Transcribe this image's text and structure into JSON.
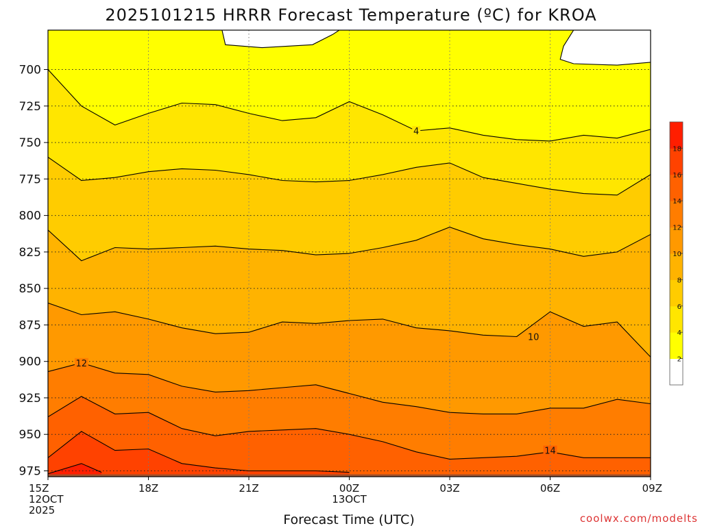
{
  "chart_data": {
    "type": "contour",
    "title": "2025101215 HRRR Forecast Temperature (ºC) for KROA",
    "xlabel": "Forecast Time (UTC)",
    "ylabel": "",
    "credit": "coolwx.com/modelts",
    "x_hours": [
      0,
      18
    ],
    "x_ticks": [
      {
        "hour": 0,
        "line1": "15Z",
        "line2": "12OCT",
        "line3": "2025"
      },
      {
        "hour": 3,
        "line1": "18Z"
      },
      {
        "hour": 6,
        "line1": "21Z"
      },
      {
        "hour": 9,
        "line1": "00Z",
        "line2": "13OCT"
      },
      {
        "hour": 12,
        "line1": "03Z"
      },
      {
        "hour": 15,
        "line1": "06Z"
      },
      {
        "hour": 18,
        "line1": "09Z"
      }
    ],
    "y_ticks": [
      700,
      725,
      750,
      775,
      800,
      825,
      850,
      875,
      900,
      925,
      950,
      975
    ],
    "ylim_hPa": [
      673,
      979
    ],
    "ground_pressure_hPa": 976,
    "colorbar": {
      "levels": [
        2,
        4,
        6,
        8,
        10,
        12,
        14,
        16,
        18
      ],
      "colors": [
        "#ffffff",
        "#ffff00",
        "#ffe600",
        "#ffcc00",
        "#ffb300",
        "#ff9900",
        "#ff7d00",
        "#ff6100",
        "#ff4200",
        "#ff1e00"
      ]
    },
    "contours": [
      {
        "level": 2,
        "label": "",
        "points": [
          [
            5.2,
            673
          ],
          [
            5.3,
            683
          ],
          [
            6.4,
            685
          ],
          [
            7.9,
            683
          ],
          [
            8.5,
            676
          ],
          [
            8.7,
            673
          ]
        ]
      },
      {
        "level": 2,
        "label": "",
        "points": [
          [
            15.7,
            673
          ],
          [
            15.4,
            684
          ],
          [
            15.3,
            693
          ],
          [
            15.7,
            696
          ],
          [
            17.0,
            697
          ],
          [
            18.0,
            695
          ]
        ]
      },
      {
        "level": 4,
        "label": "4",
        "label_at": [
          11,
          742
        ],
        "points": [
          [
            0,
            700
          ],
          [
            1,
            725
          ],
          [
            2,
            738
          ],
          [
            3,
            730
          ],
          [
            4,
            723
          ],
          [
            5,
            724
          ],
          [
            6,
            730
          ],
          [
            7,
            735
          ],
          [
            8,
            733
          ],
          [
            9,
            722
          ],
          [
            10,
            731
          ],
          [
            11,
            742
          ],
          [
            12,
            740
          ],
          [
            13,
            745
          ],
          [
            14,
            748
          ],
          [
            15,
            749
          ],
          [
            16,
            745
          ],
          [
            17,
            747
          ],
          [
            18,
            741
          ]
        ]
      },
      {
        "level": 6,
        "label": "",
        "points": [
          [
            0,
            760
          ],
          [
            1,
            776
          ],
          [
            2,
            774
          ],
          [
            3,
            770
          ],
          [
            4,
            768
          ],
          [
            5,
            769
          ],
          [
            6,
            772
          ],
          [
            7,
            776
          ],
          [
            8,
            777
          ],
          [
            9,
            776
          ],
          [
            10,
            772
          ],
          [
            11,
            767
          ],
          [
            12,
            764
          ],
          [
            13,
            774
          ],
          [
            14,
            778
          ],
          [
            15,
            782
          ],
          [
            16,
            785
          ],
          [
            17,
            786
          ],
          [
            18,
            772
          ]
        ]
      },
      {
        "level": 8,
        "label": "",
        "points": [
          [
            0,
            810
          ],
          [
            1,
            831
          ],
          [
            2,
            822
          ],
          [
            3,
            823
          ],
          [
            4,
            822
          ],
          [
            5,
            821
          ],
          [
            6,
            823
          ],
          [
            7,
            824
          ],
          [
            8,
            827
          ],
          [
            9,
            826
          ],
          [
            10,
            822
          ],
          [
            11,
            817
          ],
          [
            12,
            808
          ],
          [
            13,
            816
          ],
          [
            14,
            820
          ],
          [
            15,
            823
          ],
          [
            16,
            828
          ],
          [
            17,
            825
          ],
          [
            18,
            813
          ]
        ]
      },
      {
        "level": 10,
        "label": "10",
        "label_at": [
          14.5,
          883
        ],
        "points": [
          [
            0,
            860
          ],
          [
            1,
            868
          ],
          [
            2,
            866
          ],
          [
            3,
            871
          ],
          [
            4,
            877
          ],
          [
            5,
            881
          ],
          [
            6,
            880
          ],
          [
            7,
            873
          ],
          [
            8,
            874
          ],
          [
            9,
            872
          ],
          [
            10,
            871
          ],
          [
            11,
            877
          ],
          [
            12,
            879
          ],
          [
            13,
            882
          ],
          [
            14,
            883
          ],
          [
            15,
            866
          ],
          [
            16,
            876
          ],
          [
            17,
            873
          ],
          [
            18,
            897
          ]
        ]
      },
      {
        "level": 12,
        "label": "12",
        "label_at": [
          1,
          901
        ],
        "points": [
          [
            0,
            907
          ],
          [
            1,
            901
          ],
          [
            2,
            908
          ],
          [
            3,
            909
          ],
          [
            4,
            917
          ],
          [
            5,
            921
          ],
          [
            6,
            920
          ],
          [
            7,
            918
          ],
          [
            8,
            916
          ],
          [
            9,
            922
          ],
          [
            10,
            928
          ],
          [
            11,
            931
          ],
          [
            12,
            935
          ],
          [
            13,
            936
          ],
          [
            14,
            936
          ],
          [
            15,
            932
          ],
          [
            16,
            932
          ],
          [
            17,
            926
          ],
          [
            18,
            929
          ]
        ]
      },
      {
        "level": 14,
        "label": "14",
        "label_at": [
          15,
          961
        ],
        "points": [
          [
            0,
            938
          ],
          [
            1,
            924
          ],
          [
            2,
            936
          ],
          [
            3,
            935
          ],
          [
            4,
            946
          ],
          [
            5,
            951
          ],
          [
            6,
            948
          ],
          [
            7,
            947
          ],
          [
            8,
            946
          ],
          [
            9,
            950
          ],
          [
            10,
            955
          ],
          [
            11,
            962
          ],
          [
            12,
            967
          ],
          [
            13,
            966
          ],
          [
            14,
            965
          ],
          [
            15,
            962
          ],
          [
            16,
            966
          ],
          [
            17,
            966
          ],
          [
            18,
            966
          ]
        ]
      },
      {
        "level": 16,
        "label": "",
        "points": [
          [
            0,
            966
          ],
          [
            1,
            948
          ],
          [
            2,
            961
          ],
          [
            3,
            960
          ],
          [
            4,
            970
          ],
          [
            5,
            973
          ],
          [
            6,
            975
          ],
          [
            7,
            975
          ],
          [
            8,
            975
          ],
          [
            9,
            976
          ]
        ]
      },
      {
        "level": 18,
        "label": "",
        "points": [
          [
            0,
            977
          ],
          [
            1,
            970
          ],
          [
            1.6,
            976
          ]
        ]
      }
    ]
  }
}
